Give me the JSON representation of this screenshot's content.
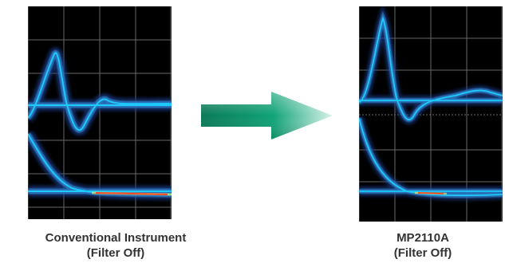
{
  "comparison": {
    "left": {
      "caption_line1": "Conventional Instrument",
      "caption_line2": "(Filter Off)"
    },
    "right": {
      "caption_line1": "MP2110A",
      "caption_line2": "(Filter Off)"
    },
    "arrow_icon": "right-arrow-icon"
  },
  "colors": {
    "scope_bg": "#000000",
    "grid": "#8a8a8a",
    "trace_core": "#1fd3ff",
    "trace_mid": "#2a7ec8",
    "trace_glow": "#1a3d8a",
    "hot": "#ff3a1a",
    "warm": "#ffe15a",
    "arrow_dark": "#0a7a58",
    "arrow_light": "#d8f3ea"
  }
}
